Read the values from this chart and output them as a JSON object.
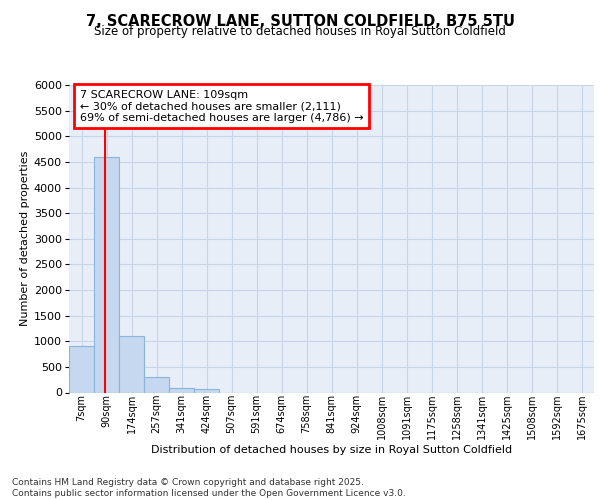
{
  "title": "7, SCARECROW LANE, SUTTON COLDFIELD, B75 5TU",
  "subtitle": "Size of property relative to detached houses in Royal Sutton Coldfield",
  "xlabel": "Distribution of detached houses by size in Royal Sutton Coldfield",
  "ylabel": "Number of detached properties",
  "bin_labels": [
    "7sqm",
    "90sqm",
    "174sqm",
    "257sqm",
    "341sqm",
    "424sqm",
    "507sqm",
    "591sqm",
    "674sqm",
    "758sqm",
    "841sqm",
    "924sqm",
    "1008sqm",
    "1091sqm",
    "1175sqm",
    "1258sqm",
    "1341sqm",
    "1425sqm",
    "1508sqm",
    "1592sqm",
    "1675sqm"
  ],
  "bar_values": [
    900,
    4600,
    1100,
    300,
    80,
    60,
    0,
    0,
    0,
    0,
    0,
    0,
    0,
    0,
    0,
    0,
    0,
    0,
    0,
    0,
    0
  ],
  "bar_color": "#c5d8f0",
  "bar_edge_color": "#8ab4d8",
  "annotation_title": "7 SCARECROW LANE: 109sqm",
  "annotation_line1": "← 30% of detached houses are smaller (2,111)",
  "annotation_line2": "69% of semi-detached houses are larger (4,786) →",
  "red_line_x": 0.95,
  "ylim": [
    0,
    6000
  ],
  "yticks": [
    0,
    500,
    1000,
    1500,
    2000,
    2500,
    3000,
    3500,
    4000,
    4500,
    5000,
    5500,
    6000
  ],
  "grid_color": "#c8d4e8",
  "background_color": "#e8eef8",
  "footer_line1": "Contains HM Land Registry data © Crown copyright and database right 2025.",
  "footer_line2": "Contains public sector information licensed under the Open Government Licence v3.0."
}
